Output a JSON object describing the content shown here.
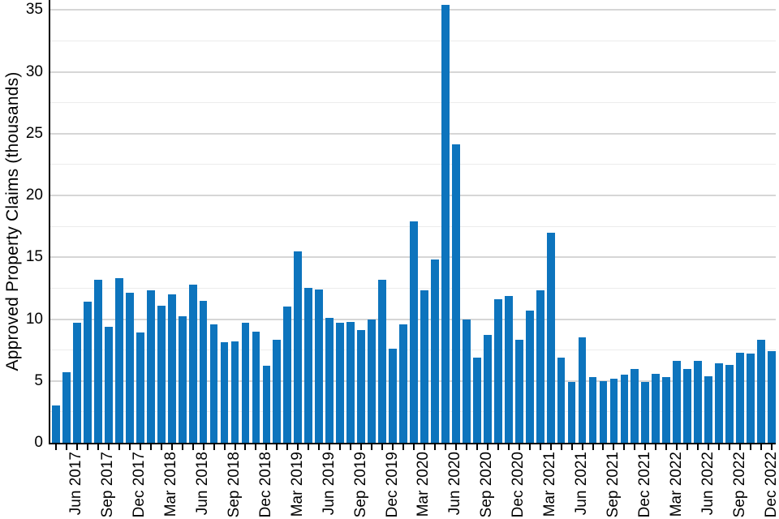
{
  "chart_data": {
    "type": "bar",
    "title": "",
    "xlabel": "",
    "ylabel": "Approved Property Claims (thousands)",
    "categories": [
      "Apr 2017",
      "May 2017",
      "Jun 2017",
      "Jul 2017",
      "Aug 2017",
      "Sep 2017",
      "Oct 2017",
      "Nov 2017",
      "Dec 2017",
      "Jan 2018",
      "Feb 2018",
      "Mar 2018",
      "Apr 2018",
      "May 2018",
      "Jun 2018",
      "Jul 2018",
      "Aug 2018",
      "Sep 2018",
      "Oct 2018",
      "Nov 2018",
      "Dec 2018",
      "Jan 2019",
      "Feb 2019",
      "Mar 2019",
      "Apr 2019",
      "May 2019",
      "Jun 2019",
      "Jul 2019",
      "Aug 2019",
      "Sep 2019",
      "Oct 2019",
      "Nov 2019",
      "Dec 2019",
      "Jan 2020",
      "Feb 2020",
      "Mar 2020",
      "Apr 2020",
      "May 2020",
      "Jun 2020",
      "Jul 2020",
      "Aug 2020",
      "Sep 2020",
      "Oct 2020",
      "Nov 2020",
      "Dec 2020",
      "Jan 2021",
      "Feb 2021",
      "Mar 2021",
      "Apr 2021",
      "May 2021",
      "Jun 2021",
      "Jul 2021",
      "Aug 2021",
      "Sep 2021",
      "Oct 2021",
      "Nov 2021",
      "Dec 2021",
      "Jan 2022",
      "Feb 2022",
      "Mar 2022",
      "Apr 2022",
      "May 2022",
      "Jun 2022",
      "Jul 2022",
      "Aug 2022",
      "Sep 2022",
      "Oct 2022",
      "Nov 2022",
      "Dec 2022"
    ],
    "values": [
      3.0,
      5.7,
      9.7,
      11.4,
      13.2,
      9.4,
      13.3,
      12.1,
      8.9,
      12.3,
      11.1,
      12.0,
      10.2,
      12.8,
      11.5,
      9.6,
      8.1,
      8.2,
      9.7,
      9.0,
      6.2,
      8.3,
      11.0,
      15.5,
      12.5,
      12.4,
      10.1,
      9.7,
      9.8,
      9.1,
      10.0,
      13.2,
      7.6,
      9.6,
      17.9,
      12.3,
      14.8,
      35.4,
      24.1,
      10.0,
      6.9,
      8.7,
      11.6,
      11.9,
      8.3,
      10.7,
      12.3,
      17.0,
      6.9,
      4.9,
      8.5,
      5.3,
      5.0,
      5.2,
      5.5,
      6.0,
      4.9,
      5.6,
      5.3,
      6.6,
      6.0,
      6.6,
      5.4,
      6.4,
      6.3,
      7.3,
      7.2,
      8.3,
      7.4
    ],
    "yticks": [
      0,
      5,
      10,
      15,
      20,
      25,
      30,
      35
    ],
    "ylim": [
      0,
      35.8
    ],
    "minor_grid_step": 2.5,
    "major_grid_step": 5,
    "grid": "horizontal",
    "legend_position": "none",
    "xtick_labels_shown": [
      "Jun 2017",
      "Sep 2017",
      "Dec 2017",
      "Mar 2018",
      "Jun 2018",
      "Sep 2018",
      "Dec 2018",
      "Mar 2019",
      "Jun 2019",
      "Sep 2019",
      "Dec 2019",
      "Mar 2020",
      "Jun 2020",
      "Sep 2020",
      "Dec 2020",
      "Mar 2021",
      "Jun 2021",
      "Sep 2021",
      "Dec 2021",
      "Mar 2022",
      "Jun 2022",
      "Sep 2022",
      "Dec 2022"
    ],
    "xtick_label_start_index": 2,
    "xtick_label_every": 3,
    "bar_color": "#0d74bd"
  },
  "colors": {
    "bar": "#0d74bd",
    "axis": "#000000",
    "grid_major": "#d6d6d6",
    "grid_minor": "#ececec",
    "text": "#000000",
    "background": "#ffffff"
  }
}
